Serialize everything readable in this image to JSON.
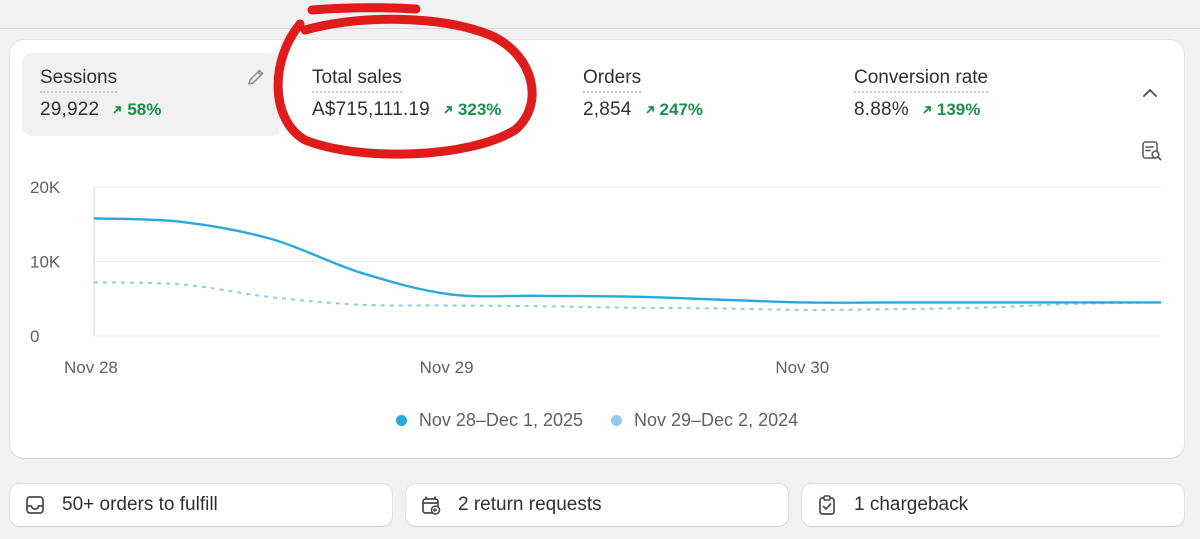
{
  "metrics": [
    {
      "label": "Sessions",
      "value": "29,922",
      "change": "58%"
    },
    {
      "label": "Total sales",
      "value": "A$715,111.19",
      "change": "323%"
    },
    {
      "label": "Orders",
      "value": "2,854",
      "change": "247%"
    },
    {
      "label": "Conversion rate",
      "value": "8.88%",
      "change": "139%"
    }
  ],
  "icons": {
    "edit": "pencil-icon",
    "collapse": "chevron-up-icon",
    "analyze": "chart-search-icon",
    "change_up": "arrow-up-right-icon"
  },
  "colors": {
    "current_series": "#29a8e0",
    "previous_series": "#8fcbe8",
    "positive": "#1a8f4c",
    "annotation": "#e01b1b"
  },
  "chart_data": {
    "type": "line",
    "x_ticks": [
      "Nov 28",
      "Nov 29",
      "Nov 30"
    ],
    "y_ticks": [
      "20K",
      "10K",
      "0"
    ],
    "ylim": [
      0,
      20000
    ],
    "grid": true,
    "x": [
      0,
      0.25,
      0.5,
      0.75,
      1.0,
      1.25,
      1.5,
      1.75,
      2.0,
      2.25,
      2.5,
      2.75,
      3.0
    ],
    "series": [
      {
        "name": "Nov 28–Dec 1, 2025",
        "style": "solid",
        "values": [
          15800,
          15300,
          13000,
          8500,
          5600,
          5400,
          5300,
          4900,
          4500,
          4500,
          4500,
          4500,
          4500
        ]
      },
      {
        "name": "Nov 29–Dec 2, 2024",
        "style": "dashed",
        "values": [
          7200,
          6900,
          5200,
          4200,
          4100,
          4000,
          3800,
          3700,
          3500,
          3600,
          3800,
          4300,
          4500
        ]
      }
    ]
  },
  "action_tiles": [
    {
      "label": "50+ orders to fulfill",
      "icon": "inbox-icon"
    },
    {
      "label": "2 return requests",
      "icon": "return-box-icon"
    },
    {
      "label": "1 chargeback",
      "icon": "clipboard-check-icon"
    }
  ]
}
